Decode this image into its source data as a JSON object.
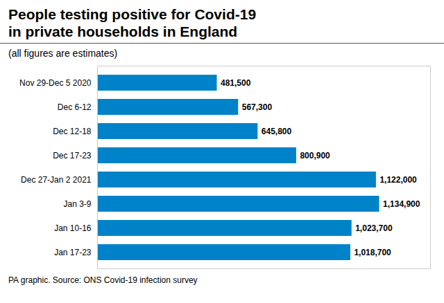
{
  "chart_data": {
    "type": "bar",
    "orientation": "horizontal",
    "title": "People testing positive for Covid-19\nin private households in England",
    "subtitle": "(all figures are estimates)",
    "caption": "PA graphic. Source: ONS Covid-19 infection survey",
    "categories": [
      "Nov 29-Dec 5 2020",
      "Dec 6-12",
      "Dec 12-18",
      "Dec 17-23",
      "Dec 27-Jan 2 2021",
      "Jan 3-9",
      "Jan 10-16",
      "Jan 17-23"
    ],
    "values": [
      481500,
      567300,
      645800,
      800900,
      1122000,
      1134900,
      1023700,
      1018700
    ],
    "value_labels": [
      "481,500",
      "567,300",
      "645,800",
      "800,900",
      "1,122,000",
      "1,134,900",
      "1,023,700",
      "1,018,700"
    ],
    "data_labels": true,
    "color": "#0082C8",
    "xlim": [
      0,
      1340000
    ],
    "xticks": [],
    "tick_labels": "y",
    "grid": false
  }
}
